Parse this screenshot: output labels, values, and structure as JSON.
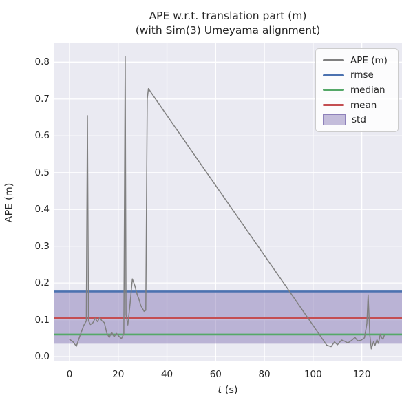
{
  "figure": {
    "title_line1": "APE w.r.t. translation part (m)",
    "title_line2": "(with Sim(3) Umeyama alignment)",
    "ylabel": "APE (m)",
    "xlabel_var": "t",
    "xlabel_unit": " (s)"
  },
  "legend": {
    "items": [
      {
        "label": "APE (m)",
        "swatch": "line",
        "color": "#808080"
      },
      {
        "label": "rmse",
        "swatch": "line",
        "color": "#4c72b0"
      },
      {
        "label": "median",
        "swatch": "line",
        "color": "#55a868"
      },
      {
        "label": "mean",
        "swatch": "line",
        "color": "#c44e52"
      },
      {
        "label": "std",
        "swatch": "patch",
        "color": "#8172b2"
      }
    ]
  },
  "chart_data": {
    "type": "line",
    "title": "APE w.r.t. translation part (m) (with Sim(3) Umeyama alignment)",
    "xlabel": "t (s)",
    "ylabel": "APE (m)",
    "xlim": [
      -6.5,
      136.5
    ],
    "ylim": [
      -0.013,
      0.853
    ],
    "x_ticks": [
      0,
      20,
      40,
      60,
      80,
      100,
      120
    ],
    "x_tick_labels": [
      "0",
      "20",
      "40",
      "60",
      "80",
      "100",
      "120"
    ],
    "y_ticks": [
      0.0,
      0.1,
      0.2,
      0.3,
      0.4,
      0.5,
      0.6,
      0.7,
      0.8
    ],
    "y_tick_labels": [
      "0.0",
      "0.1",
      "0.2",
      "0.3",
      "0.4",
      "0.5",
      "0.6",
      "0.7",
      "0.8"
    ],
    "grid": true,
    "legend_position": "upper right",
    "colors": {
      "plot_bg": "#eaeaf2",
      "grid": "#ffffff",
      "text": "#262626"
    },
    "series": [
      {
        "name": "std",
        "type": "band",
        "color": "#8172b2",
        "alpha": 0.45,
        "range": [
          0.035,
          0.178
        ]
      },
      {
        "name": "rmse",
        "type": "hline",
        "color": "#4c72b0",
        "value": 0.177
      },
      {
        "name": "median",
        "type": "hline",
        "color": "#55a868",
        "value": 0.06
      },
      {
        "name": "mean",
        "type": "hline",
        "color": "#c44e52",
        "value": 0.105
      },
      {
        "name": "APE (m)",
        "type": "line",
        "color": "#808080",
        "points": [
          [
            0.0,
            0.047
          ],
          [
            1.3,
            0.041
          ],
          [
            2.8,
            0.028
          ],
          [
            4.3,
            0.057
          ],
          [
            5.8,
            0.084
          ],
          [
            6.9,
            0.097
          ],
          [
            7.35,
            0.655
          ],
          [
            7.8,
            0.097
          ],
          [
            8.6,
            0.087
          ],
          [
            9.6,
            0.092
          ],
          [
            10.5,
            0.104
          ],
          [
            11.5,
            0.095
          ],
          [
            12.4,
            0.106
          ],
          [
            13.3,
            0.097
          ],
          [
            14.3,
            0.092
          ],
          [
            15.3,
            0.064
          ],
          [
            16.3,
            0.052
          ],
          [
            17.3,
            0.066
          ],
          [
            18.3,
            0.054
          ],
          [
            19.3,
            0.063
          ],
          [
            20.3,
            0.055
          ],
          [
            21.3,
            0.049
          ],
          [
            22.3,
            0.062
          ],
          [
            22.85,
            0.815
          ],
          [
            23.2,
            0.114
          ],
          [
            23.55,
            0.101
          ],
          [
            23.95,
            0.086
          ],
          [
            24.9,
            0.146
          ],
          [
            25.8,
            0.211
          ],
          [
            26.8,
            0.193
          ],
          [
            27.8,
            0.168
          ],
          [
            28.4,
            0.158
          ],
          [
            29.3,
            0.138
          ],
          [
            30.0,
            0.13
          ],
          [
            30.6,
            0.123
          ],
          [
            31.3,
            0.126
          ],
          [
            31.9,
            0.7
          ],
          [
            32.4,
            0.728
          ],
          [
            50.0,
            0.56
          ],
          [
            70.0,
            0.37
          ],
          [
            90.0,
            0.18
          ],
          [
            105.6,
            0.031
          ],
          [
            107.4,
            0.027
          ],
          [
            108.8,
            0.04
          ],
          [
            110.0,
            0.032
          ],
          [
            111.7,
            0.045
          ],
          [
            112.9,
            0.042
          ],
          [
            114.3,
            0.037
          ],
          [
            115.8,
            0.044
          ],
          [
            117.2,
            0.052
          ],
          [
            118.3,
            0.043
          ],
          [
            119.6,
            0.044
          ],
          [
            121.1,
            0.051
          ],
          [
            122.1,
            0.09
          ],
          [
            122.6,
            0.168
          ],
          [
            123.3,
            0.058
          ],
          [
            123.9,
            0.021
          ],
          [
            124.8,
            0.04
          ],
          [
            125.4,
            0.03
          ],
          [
            126.2,
            0.046
          ],
          [
            126.8,
            0.036
          ],
          [
            127.6,
            0.061
          ],
          [
            128.2,
            0.051
          ],
          [
            128.7,
            0.047
          ],
          [
            129.3,
            0.059
          ]
        ]
      }
    ]
  }
}
